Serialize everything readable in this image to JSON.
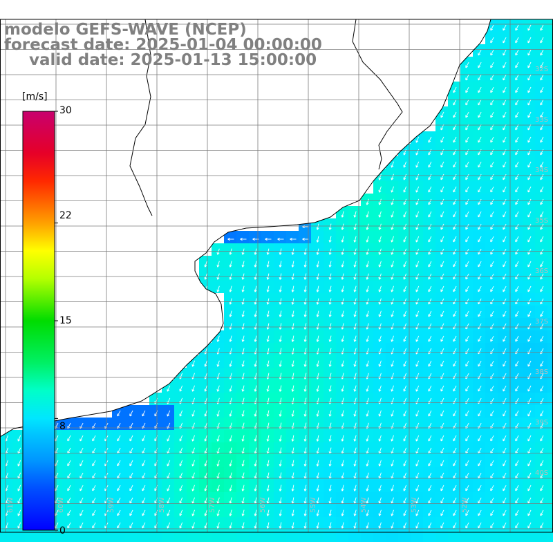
{
  "title": {
    "line1": "modelo GEFS-WAVE (NCEP)",
    "line2": "forecast date: 2025-01-04 00:00:00",
    "line3": "valid date: 2025-01-13 15:00:00"
  },
  "colorbar": {
    "unit": "[m/s]",
    "min": 0,
    "max": 30,
    "ticks": [
      "30",
      "22",
      "15",
      "8",
      "0"
    ],
    "tick_values": [
      30,
      22,
      15,
      8,
      0
    ],
    "colors": [
      "#0000ff",
      "#00a0ff",
      "#00e5ff",
      "#00ff80",
      "#00dd00",
      "#a0ff00",
      "#ffff00",
      "#ffa500",
      "#ff4000",
      "#ff0000",
      "#dd0040",
      "#c8006e"
    ]
  },
  "lat_labels": [
    "32S",
    "33S",
    "34S",
    "35S",
    "36S",
    "37S",
    "38S",
    "39S",
    "40S"
  ],
  "lon_labels": [
    "61W",
    "60W",
    "59W",
    "58W",
    "57W",
    "56W",
    "55W",
    "54W",
    "53W",
    "52W"
  ],
  "colors": {
    "land": "#ffffff",
    "grid": "#7a7a7a",
    "coast": "#000000",
    "arrow": "#ffffff",
    "title": "#808080"
  },
  "field": {
    "description_variable": "wind speed",
    "dominant_direction": "from north-northeast toward south-southwest"
  }
}
